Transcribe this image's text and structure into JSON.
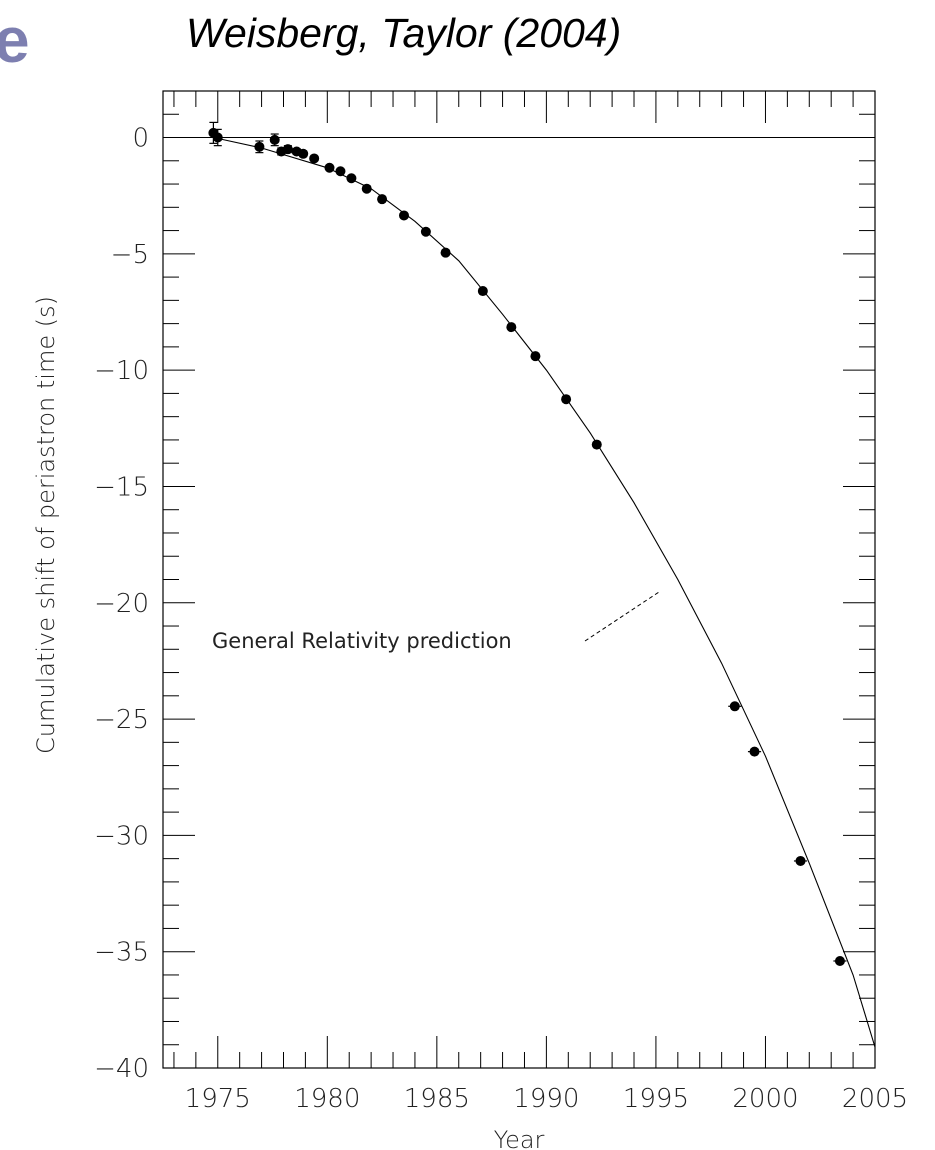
{
  "header": {
    "fragment": "e",
    "title": "Weisberg, Taylor (2004)"
  },
  "chart_data": {
    "type": "scatter",
    "title": "",
    "xlabel": "Year",
    "ylabel": "Cumulative shift of periastron time (s)",
    "xlim": [
      1972.5,
      2005
    ],
    "ylim": [
      -40,
      2
    ],
    "x_ticks": [
      1975,
      1980,
      1985,
      1990,
      1995,
      2000,
      2005
    ],
    "x_tick_labels": [
      "1975",
      "1980",
      "1985",
      "1990",
      "1995",
      "2000",
      "2005"
    ],
    "y_ticks": [
      0,
      -5,
      -10,
      -15,
      -20,
      -25,
      -30,
      -35,
      -40
    ],
    "y_tick_labels": [
      "0",
      "−5",
      "−10",
      "−15",
      "−20",
      "−25",
      "−30",
      "−35",
      "−40"
    ],
    "grid": false,
    "reference_line": {
      "y": 0
    },
    "series": [
      {
        "type": "scatter",
        "x": [
          1974.8,
          1975.0,
          1976.9,
          1977.6,
          1977.9,
          1978.2,
          1978.6,
          1978.9,
          1979.4,
          1980.1,
          1980.6,
          1981.1,
          1981.8,
          1982.5,
          1983.5,
          1984.5,
          1985.4,
          1987.1,
          1988.4,
          1989.5,
          1990.9,
          1992.3,
          1998.6,
          1999.5,
          2001.6,
          2003.4
        ],
        "y": [
          0.2,
          0.0,
          -0.4,
          -0.1,
          -0.6,
          -0.5,
          -0.6,
          -0.7,
          -0.9,
          -1.3,
          -1.45,
          -1.75,
          -2.2,
          -2.65,
          -3.35,
          -4.05,
          -4.95,
          -6.6,
          -8.15,
          -9.4,
          -11.25,
          -13.2,
          -24.45,
          -26.4,
          -31.1,
          -35.4
        ],
        "yerr": [
          0.45,
          0.35,
          0.25,
          0.25,
          0.15,
          0.15,
          0.12,
          0.12,
          0.1,
          0.1,
          0.1,
          0.1,
          0.1,
          0.1,
          0.1,
          0.1,
          0.1,
          0.1,
          0.1,
          0.1,
          0.1,
          0.1,
          0.1,
          0.1,
          0.1,
          0.1
        ],
        "xerr": [
          0.1,
          0.1,
          0.15,
          0.15,
          0.15,
          0.15,
          0.15,
          0.15,
          0.15,
          0.15,
          0.15,
          0.15,
          0.15,
          0.15,
          0.15,
          0.15,
          0.2,
          0.2,
          0.2,
          0.2,
          0.2,
          0.2,
          0.3,
          0.3,
          0.3,
          0.3
        ]
      },
      {
        "name": "General Relativity prediction",
        "type": "line",
        "x": [
          1974.8,
          1977,
          1980,
          1982,
          1984,
          1986,
          1988,
          1990,
          1992,
          1994,
          1996,
          1998,
          2000,
          2002,
          2004,
          2005
        ],
        "y": [
          0,
          -0.45,
          -1.3,
          -2.2,
          -3.6,
          -5.3,
          -7.6,
          -10.0,
          -12.7,
          -15.7,
          -19.0,
          -22.6,
          -26.6,
          -31.2,
          -36.0,
          -39.1
        ]
      }
    ],
    "annotations": [
      {
        "text": "General Relativity prediction",
        "x": 1995.2,
        "y": -19.5
      }
    ]
  }
}
